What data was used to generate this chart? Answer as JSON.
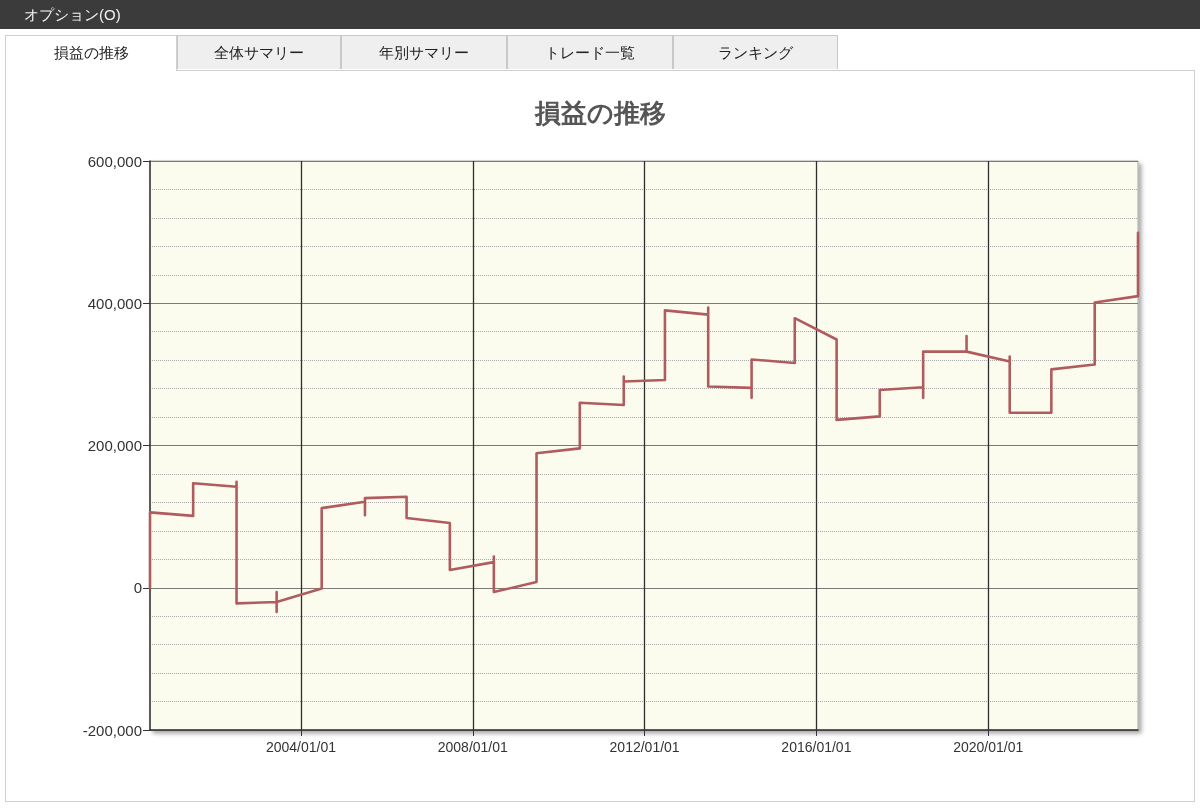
{
  "chart_data": {
    "type": "line",
    "title": "損益の推移",
    "annotations": [
      "オプション(O)",
      "損益の推移",
      "全体サマリー",
      "年別サマリー",
      "トレード一覧",
      "ランキング"
    ],
    "x": [
      "2000-06-26",
      "2000-06-26",
      "2001-06-28",
      "2001-06-28",
      "2002-07-02",
      "2002-07-02",
      "2002-07-02",
      "2003-06-08",
      "2003-06-08",
      "2003-06-08",
      "2003-06-08",
      "2004-06-25",
      "2004-06-25",
      "2005-06-28",
      "2005-06-28",
      "2005-06-28",
      "2006-06-17",
      "2006-06-17",
      "2007-06-20",
      "2007-06-20",
      "2008-06-28",
      "2008-06-28",
      "2008-06-28",
      "2009-06-26",
      "2009-06-26",
      "2010-06-29",
      "2010-06-29",
      "2011-07-08",
      "2011-07-08",
      "2011-07-08",
      "2012-06-22",
      "2012-06-22",
      "2013-06-25",
      "2013-06-25",
      "2013-06-25",
      "2014-06-29",
      "2014-06-29",
      "2014-06-29",
      "2015-07-01",
      "2015-07-01",
      "2016-06-21",
      "2016-06-21",
      "2017-06-23",
      "2017-06-23",
      "2018-06-27",
      "2018-06-27",
      "2018-06-27",
      "2019-07-01",
      "2019-07-01",
      "2019-07-01",
      "2020-07-02",
      "2020-07-02",
      "2020-07-02",
      "2021-06-21",
      "2021-06-21",
      "2022-06-25",
      "2022-06-25",
      "2023-06-28",
      "2023-06-28"
    ],
    "values": [
      0,
      106000,
      101000,
      147000,
      142000,
      149000,
      -22000,
      -20000,
      -6000,
      -34000,
      -20000,
      -1000,
      112000,
      121000,
      102000,
      126000,
      128000,
      98000,
      91000,
      25000,
      36000,
      44000,
      -6000,
      8000,
      189000,
      196000,
      260000,
      257000,
      297000,
      290000,
      292000,
      390000,
      384000,
      394000,
      283000,
      281000,
      267000,
      321000,
      316000,
      379000,
      349000,
      236000,
      241000,
      278000,
      282000,
      267000,
      332000,
      332000,
      354000,
      332000,
      318000,
      325000,
      246000,
      246000,
      307000,
      314000,
      401000,
      410000,
      499000
    ],
    "color": "#b05c5e",
    "xlim": [
      "2000-06-26",
      "2023-06-28"
    ],
    "xticks": [
      {
        "value": "2004-01-01",
        "label": "2004/01/01"
      },
      {
        "value": "2008-01-01",
        "label": "2008/01/01"
      },
      {
        "value": "2012-01-01",
        "label": "2012/01/01"
      },
      {
        "value": "2016-01-01",
        "label": "2016/01/01"
      },
      {
        "value": "2020-01-01",
        "label": "2020/01/01"
      }
    ],
    "ylim": [
      -200000,
      600000
    ],
    "yticks": [
      {
        "value": -200000,
        "label": "-200,000"
      },
      0,
      {
        "value": 200000,
        "label": "200,000"
      },
      {
        "value": 400000,
        "label": "400,000"
      },
      {
        "value": 600000,
        "label": "600,000"
      }
    ],
    "grid": true,
    "marker": "none",
    "line_style": "solid"
  }
}
